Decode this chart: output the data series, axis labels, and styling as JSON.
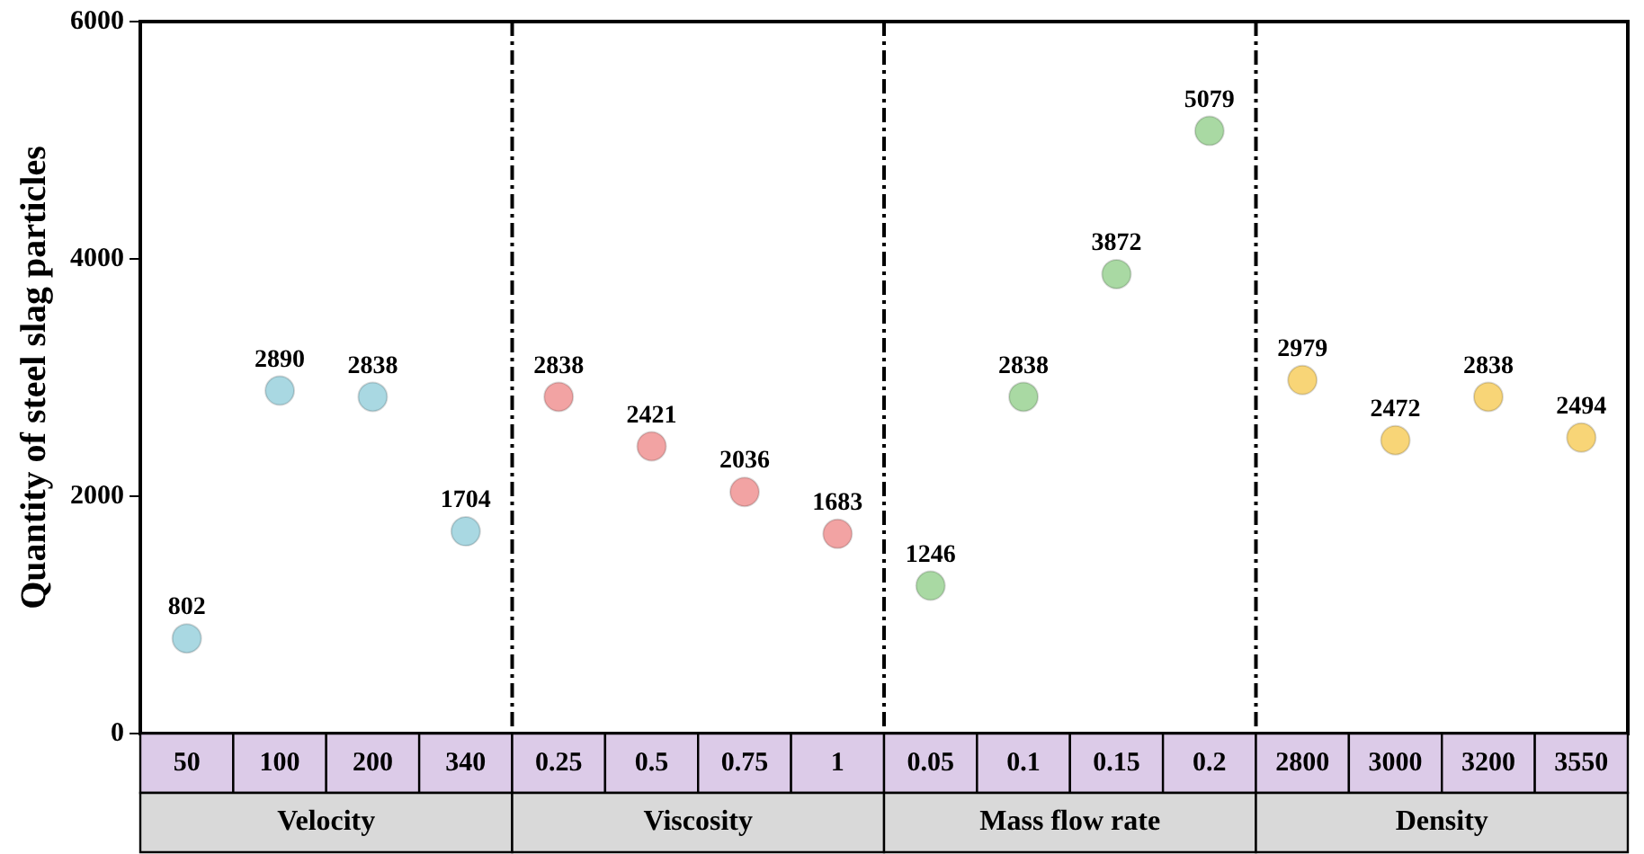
{
  "chart_data": {
    "type": "scatter",
    "ylabel": "Quantity of steel slag particles",
    "categories": [
      "50",
      "100",
      "200",
      "340",
      "0.25",
      "0.5",
      "0.75",
      "1",
      "0.05",
      "0.1",
      "0.15",
      "0.2",
      "2800",
      "3000",
      "3200",
      "3550"
    ],
    "series": [
      {
        "color": "#a9d8e2",
        "values": [
          802,
          2890,
          2838,
          1704,
          null,
          null,
          null,
          null,
          null,
          null,
          null,
          null,
          null,
          null,
          null,
          null
        ]
      },
      {
        "color": "#f2a3a3",
        "values": [
          null,
          null,
          null,
          null,
          2838,
          2421,
          2036,
          1683,
          null,
          null,
          null,
          null,
          null,
          null,
          null,
          null
        ]
      },
      {
        "color": "#a9d9a3",
        "values": [
          null,
          null,
          null,
          null,
          null,
          null,
          null,
          null,
          1246,
          2838,
          3872,
          5079,
          null,
          null,
          null,
          null
        ]
      },
      {
        "color": "#f8d577",
        "values": [
          null,
          null,
          null,
          null,
          null,
          null,
          null,
          null,
          null,
          null,
          null,
          null,
          2979,
          2472,
          2838,
          2494
        ]
      }
    ],
    "annotations": [
      "Velocity",
      "Viscosity",
      "Mass flow rate",
      "Density"
    ],
    "ylim": [
      0,
      6000
    ],
    "yticks": [
      0,
      2000,
      4000,
      6000
    ],
    "grid": false,
    "legend": false,
    "marker": "circle",
    "data_labels": true
  }
}
